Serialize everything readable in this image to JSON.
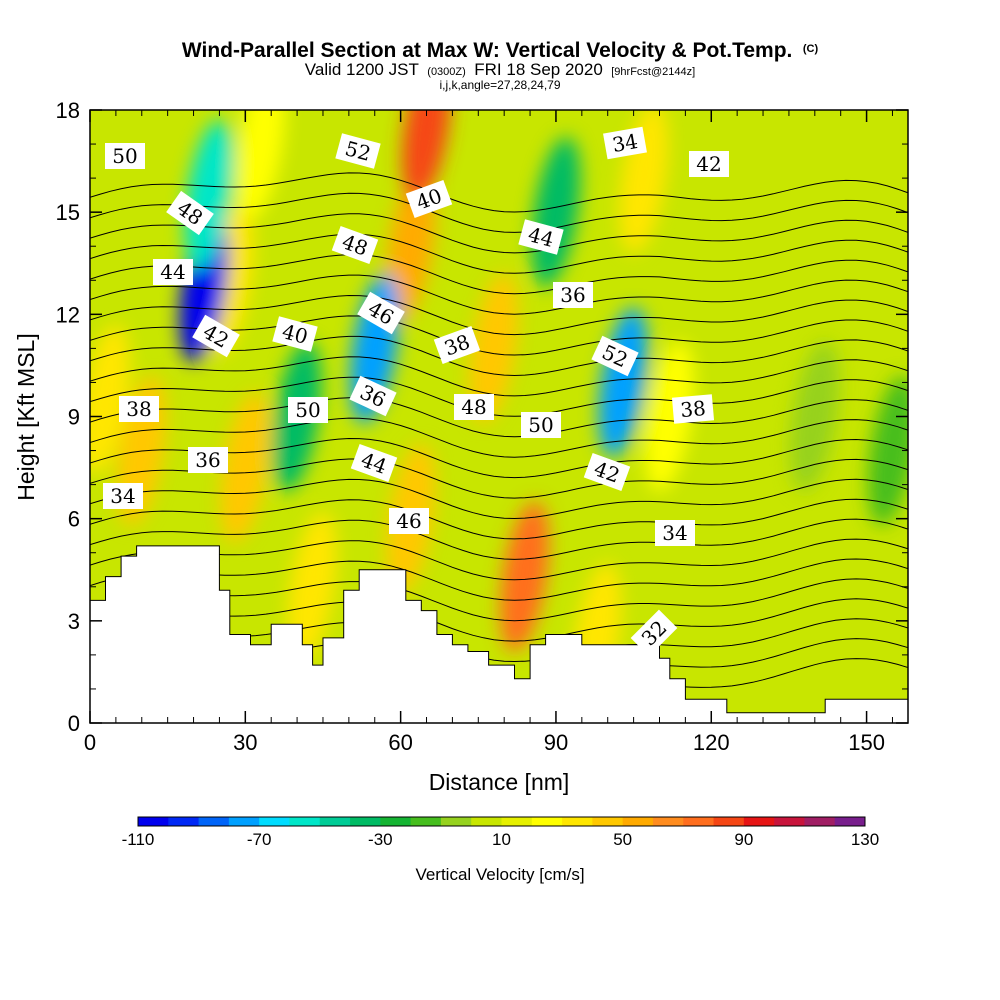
{
  "title": {
    "main": "Wind-Parallel Section at Max W: Vertical Velocity & Pot.Temp.",
    "copyright": "(C)",
    "valid_prefix": "Valid 1200 JST",
    "valid_utc": "(0300Z)",
    "valid_date": "FRI 18 Sep 2020",
    "forecast": "[9hrFcst@2144z]",
    "indices": "i,j,k,angle=27,28,24,79"
  },
  "chart_data": {
    "type": "heatmap",
    "xlabel": "Distance [nm]",
    "ylabel": "Height [Kft MSL]",
    "xlim": [
      0,
      158
    ],
    "ylim": [
      0,
      18
    ],
    "x_ticks": [
      0,
      30,
      60,
      90,
      120,
      150
    ],
    "y_ticks": [
      0,
      3,
      6,
      9,
      12,
      15,
      18
    ],
    "shaded_field": "Vertical Velocity [cm/s]",
    "contour_field": "Potential temperature",
    "colorbar": {
      "label": "Vertical Velocity [cm/s]",
      "min": -110,
      "max": 130,
      "step": 10,
      "tick_labels": [
        "-110",
        "-70",
        "-30",
        "10",
        "50",
        "90",
        "130"
      ],
      "colors": [
        "#0000ee",
        "#0028f5",
        "#0064f8",
        "#00a0ff",
        "#00dcff",
        "#00e6c8",
        "#00cc96",
        "#00bb64",
        "#14b432",
        "#46be1e",
        "#96d21e",
        "#c8e600",
        "#e6f000",
        "#ffff00",
        "#ffe600",
        "#ffc800",
        "#ffaa00",
        "#ff8c1e",
        "#ff6e1e",
        "#f54614",
        "#e61414",
        "#c8143c",
        "#a01e64",
        "#781e8c",
        "#5a148c"
      ]
    },
    "w_updraft_cores": [
      {
        "x": 3,
        "z": 9.5,
        "w": 30
      },
      {
        "x": 10,
        "z": 8,
        "w": 35
      },
      {
        "x": 30,
        "z": 7.5,
        "w": 40
      },
      {
        "x": 27,
        "z": 13,
        "w": 25
      },
      {
        "x": 33,
        "z": 17,
        "w": 20
      },
      {
        "x": 43,
        "z": 4,
        "w": 30
      },
      {
        "x": 62,
        "z": 14,
        "w": 45
      },
      {
        "x": 62,
        "z": 6,
        "w": 35
      },
      {
        "x": 65,
        "z": 17.5,
        "w": 80
      },
      {
        "x": 84,
        "z": 4.3,
        "w": 70
      },
      {
        "x": 78,
        "z": 11,
        "w": 35
      },
      {
        "x": 98,
        "z": 2.5,
        "w": 30
      },
      {
        "x": 107,
        "z": 16,
        "w": 25
      },
      {
        "x": 112,
        "z": 9,
        "w": 15
      }
    ],
    "w_downdraft_cores": [
      {
        "x": 22,
        "z": 12.8,
        "w": -110
      },
      {
        "x": 23,
        "z": 15.5,
        "w": -60
      },
      {
        "x": 55,
        "z": 11,
        "w": -85
      },
      {
        "x": 40,
        "z": 9,
        "w": -40
      },
      {
        "x": 103,
        "z": 10,
        "w": -80
      },
      {
        "x": 90,
        "z": 15,
        "w": -40
      },
      {
        "x": 155,
        "z": 8,
        "w": -20
      },
      {
        "x": 140,
        "z": 9,
        "w": -15
      }
    ],
    "theta_contour_labels": [
      "50",
      "48",
      "44",
      "42",
      "38",
      "36",
      "34",
      "52",
      "48",
      "46",
      "40",
      "36",
      "50",
      "44",
      "40",
      "38",
      "48",
      "46",
      "44",
      "36",
      "52",
      "50",
      "42",
      "34",
      "42",
      "38",
      "34",
      "32"
    ],
    "theta_levels": [
      30,
      31,
      32,
      33,
      34,
      35,
      36,
      37,
      38,
      39,
      40,
      41,
      42,
      43,
      44,
      45,
      46,
      47,
      48,
      49,
      50,
      51,
      52,
      53,
      54
    ],
    "terrain_kft": [
      {
        "x": 0,
        "z": 3.6
      },
      {
        "x": 3,
        "z": 4.3
      },
      {
        "x": 6,
        "z": 4.9
      },
      {
        "x": 9,
        "z": 5.2
      },
      {
        "x": 22,
        "z": 5.2
      },
      {
        "x": 25,
        "z": 3.9
      },
      {
        "x": 27,
        "z": 2.6
      },
      {
        "x": 31,
        "z": 2.3
      },
      {
        "x": 35,
        "z": 2.9
      },
      {
        "x": 38,
        "z": 2.9
      },
      {
        "x": 41,
        "z": 2.3
      },
      {
        "x": 43,
        "z": 1.7
      },
      {
        "x": 45,
        "z": 2.5
      },
      {
        "x": 49,
        "z": 3.9
      },
      {
        "x": 52,
        "z": 4.5
      },
      {
        "x": 58,
        "z": 4.5
      },
      {
        "x": 61,
        "z": 3.6
      },
      {
        "x": 64,
        "z": 3.3
      },
      {
        "x": 67,
        "z": 2.6
      },
      {
        "x": 70,
        "z": 2.3
      },
      {
        "x": 73,
        "z": 2.1
      },
      {
        "x": 77,
        "z": 1.7
      },
      {
        "x": 80,
        "z": 1.7
      },
      {
        "x": 82,
        "z": 1.3
      },
      {
        "x": 85,
        "z": 2.3
      },
      {
        "x": 88,
        "z": 2.6
      },
      {
        "x": 93,
        "z": 2.6
      },
      {
        "x": 95,
        "z": 2.3
      },
      {
        "x": 106,
        "z": 2.3
      },
      {
        "x": 110,
        "z": 1.9
      },
      {
        "x": 112,
        "z": 1.3
      },
      {
        "x": 115,
        "z": 0.7
      },
      {
        "x": 123,
        "z": 0.3
      },
      {
        "x": 140,
        "z": 0.3
      },
      {
        "x": 142,
        "z": 0.7
      },
      {
        "x": 158,
        "z": 0.7
      }
    ]
  }
}
